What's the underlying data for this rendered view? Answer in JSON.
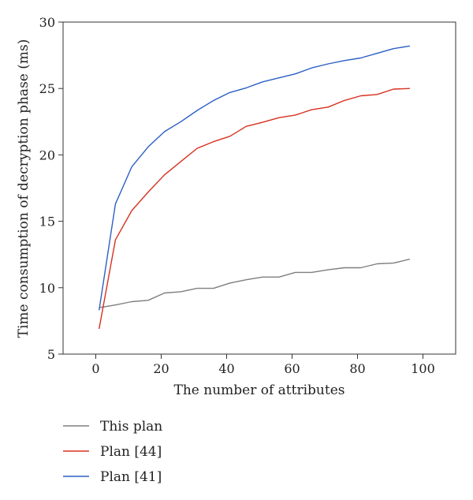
{
  "chart_data": {
    "type": "line",
    "title": "",
    "xlabel": "The number of attributes",
    "ylabel": "Time consumption of decryption phase (ms)",
    "xlim": [
      -10,
      110
    ],
    "ylim": [
      5,
      30
    ],
    "xticks": [
      0,
      20,
      40,
      60,
      80,
      100
    ],
    "yticks": [
      5,
      10,
      15,
      20,
      25,
      30
    ],
    "grid": false,
    "legend_position": "bottom-left, below plot",
    "x": [
      1,
      6,
      11,
      16,
      21,
      26,
      31,
      36,
      41,
      46,
      51,
      56,
      61,
      66,
      71,
      76,
      81,
      86,
      91,
      96
    ],
    "series": [
      {
        "name": "This plan",
        "color": "#7f7f7f",
        "values": [
          8.5,
          8.7,
          8.95,
          9.05,
          9.6,
          9.7,
          9.95,
          9.95,
          10.35,
          10.6,
          10.8,
          10.8,
          11.15,
          11.15,
          11.35,
          11.5,
          11.5,
          11.8,
          11.85,
          12.15
        ]
      },
      {
        "name": "Plan [44]",
        "color": "#d7301f",
        "values": [
          6.9,
          13.6,
          15.8,
          17.2,
          18.5,
          19.5,
          20.5,
          21.0,
          21.4,
          22.15,
          22.45,
          22.8,
          23.0,
          23.4,
          23.6,
          24.1,
          24.45,
          24.55,
          24.95,
          25.0
        ]
      },
      {
        "name": "Plan [41]",
        "color": "#2b5fc4",
        "values": [
          8.3,
          16.3,
          19.1,
          20.6,
          21.75,
          22.5,
          23.35,
          24.1,
          24.7,
          25.05,
          25.5,
          25.8,
          26.1,
          26.55,
          26.85,
          27.1,
          27.3,
          27.65,
          28.0,
          28.2
        ]
      }
    ]
  }
}
